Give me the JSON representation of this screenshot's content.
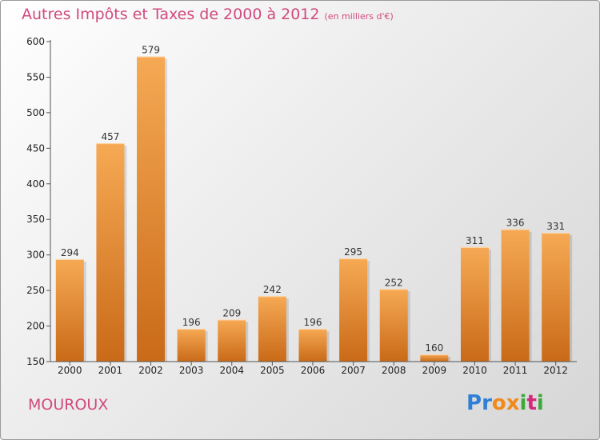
{
  "header": {
    "title": "Autres Impôts et Taxes de 2000 à 2012",
    "subtitle": "(en milliers d'€)"
  },
  "footer": {
    "commune": "MOUROUX",
    "logo_letters": [
      "P",
      "r",
      "o",
      "x",
      "i",
      "t",
      "i"
    ],
    "logo_colors": [
      "#2f7fd6",
      "#2f7fd6",
      "#f08a1c",
      "#f08a1c",
      "#3fa83a",
      "#d6287c",
      "#3fa83a"
    ]
  },
  "colors": {
    "title": "#d04a7e",
    "bar_top": "#f6a954",
    "bar_bottom": "#c96a18"
  },
  "chart_data": {
    "type": "bar",
    "title": "Autres Impôts et Taxes de 2000 à 2012",
    "subtitle": "(en milliers d'€)",
    "xlabel": "",
    "ylabel": "",
    "categories": [
      "2000",
      "2001",
      "2002",
      "2003",
      "2004",
      "2005",
      "2006",
      "2007",
      "2008",
      "2009",
      "2010",
      "2011",
      "2012"
    ],
    "values": [
      294,
      457,
      579,
      196,
      209,
      242,
      196,
      295,
      252,
      160,
      311,
      336,
      331
    ],
    "ylim": [
      150,
      600
    ],
    "yticks": [
      150,
      200,
      250,
      300,
      350,
      400,
      450,
      500,
      550,
      600
    ],
    "grid": false,
    "legend": "none"
  }
}
